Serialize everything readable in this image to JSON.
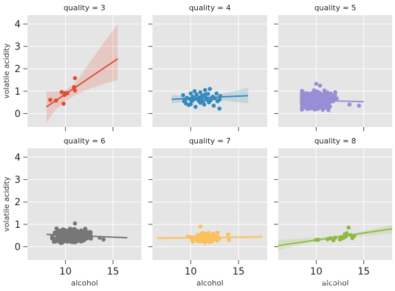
{
  "watermark": "https://blog.csdn.net/brydevson",
  "chart_data": [
    {
      "type": "scatter",
      "title": "quality = 3",
      "xlabel": "",
      "ylabel": "volatile acidity",
      "xlim": [
        6,
        18
      ],
      "ylim": [
        -0.6,
        4.4
      ],
      "xticks": [],
      "yticks": [
        0,
        1,
        2,
        3,
        4
      ],
      "grid": true,
      "color": "#E24A33",
      "points": [
        [
          8.4,
          0.61
        ],
        [
          9.0,
          0.58
        ],
        [
          9.6,
          0.96
        ],
        [
          9.8,
          0.44
        ],
        [
          9.9,
          0.83
        ],
        [
          10.0,
          0.91
        ],
        [
          10.2,
          0.91
        ],
        [
          10.9,
          1.18
        ],
        [
          11.0,
          1.03
        ],
        [
          11.0,
          1.58
        ]
      ],
      "fit": {
        "x": [
          8.0,
          15.5
        ],
        "y": [
          0.3,
          2.45
        ]
      },
      "ci": {
        "x": [
          8.0,
          9.0,
          10.0,
          11.0,
          12.0,
          13.0,
          14.0,
          15.5
        ],
        "lo": [
          -0.4,
          0.18,
          0.55,
          0.82,
          1.02,
          1.18,
          1.32,
          1.5
        ],
        "hi": [
          1.0,
          0.98,
          1.05,
          1.35,
          1.95,
          2.55,
          3.15,
          4.0
        ]
      }
    },
    {
      "type": "scatter",
      "title": "quality = 4",
      "xlabel": "",
      "ylabel": "",
      "xlim": [
        6,
        18
      ],
      "ylim": [
        -0.6,
        4.4
      ],
      "xticks": [],
      "yticks": [],
      "grid": true,
      "color": "#348ABD",
      "points": [
        [
          9.2,
          0.82
        ],
        [
          9.4,
          0.6
        ],
        [
          9.5,
          0.45
        ],
        [
          9.6,
          0.7
        ],
        [
          9.8,
          0.38
        ],
        [
          9.9,
          0.65
        ],
        [
          10.0,
          0.9
        ],
        [
          10.1,
          0.55
        ],
        [
          10.2,
          0.75
        ],
        [
          10.3,
          0.62
        ],
        [
          10.4,
          1.0
        ],
        [
          10.5,
          0.68
        ],
        [
          10.5,
          0.3
        ],
        [
          10.6,
          0.85
        ],
        [
          10.8,
          0.58
        ],
        [
          10.9,
          0.72
        ],
        [
          11.0,
          0.48
        ],
        [
          11.0,
          0.95
        ],
        [
          11.1,
          0.66
        ],
        [
          11.2,
          0.8
        ],
        [
          11.3,
          0.55
        ],
        [
          11.4,
          0.4
        ],
        [
          11.5,
          1.05
        ],
        [
          11.6,
          0.7
        ],
        [
          11.7,
          0.62
        ],
        [
          11.8,
          0.88
        ],
        [
          11.9,
          0.5
        ],
        [
          12.0,
          1.1
        ],
        [
          12.1,
          0.6
        ],
        [
          12.3,
          0.75
        ],
        [
          12.4,
          0.35
        ],
        [
          12.5,
          0.68
        ],
        [
          12.7,
          0.9
        ],
        [
          12.8,
          0.55
        ],
        [
          13.0,
          0.62
        ],
        [
          13.1,
          0.78
        ],
        [
          13.0,
          0.22
        ],
        [
          9.3,
          0.55
        ],
        [
          10.0,
          0.42
        ],
        [
          11.5,
          0.85
        ]
      ],
      "fit": {
        "x": [
          8.0,
          16.0
        ],
        "y": [
          0.64,
          0.8
        ]
      },
      "ci": {
        "x": [
          8.0,
          10.0,
          11.0,
          12.0,
          14.0,
          16.0
        ],
        "lo": [
          0.45,
          0.56,
          0.62,
          0.62,
          0.55,
          0.45
        ],
        "hi": [
          0.85,
          0.74,
          0.74,
          0.8,
          0.95,
          1.15
        ]
      }
    },
    {
      "type": "scatter",
      "title": "quality = 5",
      "xlabel": "",
      "ylabel": "",
      "xlim": [
        6,
        18
      ],
      "ylim": [
        -0.6,
        4.4
      ],
      "xticks": [],
      "yticks": [],
      "grid": true,
      "color": "#988ED5",
      "cloud": {
        "n": 480,
        "xmin": 8.5,
        "xmax": 14.6,
        "xcenter": 9.9,
        "ymin": 0.15,
        "ymax": 1.3,
        "ycenter": 0.58
      },
      "points": [
        [
          10.0,
          1.33
        ],
        [
          10.4,
          1.25
        ],
        [
          12.0,
          0.95
        ],
        [
          13.5,
          0.4
        ],
        [
          14.5,
          0.35
        ]
      ],
      "fit": {
        "x": [
          8.5,
          15.0
        ],
        "y": [
          0.6,
          0.53
        ]
      },
      "ci": {
        "x": [
          8.5,
          12.0,
          15.0
        ],
        "lo": [
          0.57,
          0.55,
          0.48
        ],
        "hi": [
          0.63,
          0.58,
          0.58
        ]
      }
    },
    {
      "type": "scatter",
      "title": "quality = 6",
      "xlabel": "alcohol",
      "ylabel": "volatile acidity",
      "xlim": [
        6,
        18
      ],
      "ylim": [
        -0.6,
        4.4
      ],
      "xticks": [
        10,
        15
      ],
      "yticks": [
        0,
        1,
        2,
        3,
        4
      ],
      "grid": true,
      "color": "#777777",
      "cloud": {
        "n": 520,
        "xmin": 8.5,
        "xmax": 14.0,
        "xcenter": 10.6,
        "ymin": 0.15,
        "ymax": 1.0,
        "ycenter": 0.5
      },
      "points": [
        [
          13.6,
          0.4
        ],
        [
          14.0,
          0.32
        ],
        [
          11.0,
          1.04
        ]
      ],
      "fit": {
        "x": [
          8.0,
          16.5
        ],
        "y": [
          0.55,
          0.4
        ]
      },
      "ci": {
        "x": [
          8.0,
          12.0,
          16.5
        ],
        "lo": [
          0.52,
          0.48,
          0.36
        ],
        "hi": [
          0.58,
          0.5,
          0.44
        ]
      }
    },
    {
      "type": "scatter",
      "title": "quality = 7",
      "xlabel": "alcohol",
      "ylabel": "",
      "xlim": [
        6,
        18
      ],
      "ylim": [
        -0.6,
        4.4
      ],
      "xticks": [
        10,
        15
      ],
      "yticks": [],
      "grid": true,
      "color": "#FBC15E",
      "cloud": {
        "n": 190,
        "xmin": 9.5,
        "xmax": 13.8,
        "xcenter": 11.6,
        "ymin": 0.15,
        "ymax": 0.75,
        "ycenter": 0.4
      },
      "points": [
        [
          9.7,
          0.45
        ],
        [
          11.0,
          0.9
        ],
        [
          13.9,
          0.55
        ],
        [
          14.0,
          0.3
        ]
      ],
      "fit": {
        "x": [
          6.5,
          17.5
        ],
        "y": [
          0.38,
          0.44
        ]
      },
      "ci": {
        "x": [
          6.5,
          12.0,
          17.5
        ],
        "lo": [
          0.3,
          0.38,
          0.36
        ],
        "hi": [
          0.46,
          0.43,
          0.52
        ]
      }
    },
    {
      "type": "scatter",
      "title": "quality = 8",
      "xlabel": "alcohol",
      "ylabel": "",
      "xlim": [
        6,
        18
      ],
      "ylim": [
        -0.6,
        4.4
      ],
      "xticks": [
        10,
        15
      ],
      "yticks": [],
      "grid": true,
      "color": "#8EBA42",
      "points": [
        [
          10.0,
          0.3
        ],
        [
          10.2,
          0.31
        ],
        [
          11.2,
          0.33
        ],
        [
          11.5,
          0.38
        ],
        [
          11.8,
          0.28
        ],
        [
          12.0,
          0.4
        ],
        [
          12.5,
          0.32
        ],
        [
          12.6,
          0.43
        ],
        [
          12.7,
          0.37
        ],
        [
          12.9,
          0.4
        ],
        [
          13.0,
          0.55
        ],
        [
          13.1,
          0.45
        ],
        [
          13.2,
          0.6
        ],
        [
          13.4,
          0.85
        ],
        [
          13.6,
          0.52
        ],
        [
          14.0,
          0.48
        ],
        [
          13.8,
          0.38
        ]
      ],
      "fit": {
        "x": [
          6.0,
          18.0
        ],
        "y": [
          0.05,
          0.8
        ]
      },
      "ci": {
        "x": [
          6.0,
          8.0,
          10.0,
          12.0,
          14.0,
          16.0,
          18.0
        ],
        "lo": [
          -0.15,
          0.05,
          0.23,
          0.36,
          0.45,
          0.52,
          0.6
        ],
        "hi": [
          0.3,
          0.35,
          0.4,
          0.48,
          0.6,
          0.78,
          1.0
        ]
      }
    }
  ]
}
